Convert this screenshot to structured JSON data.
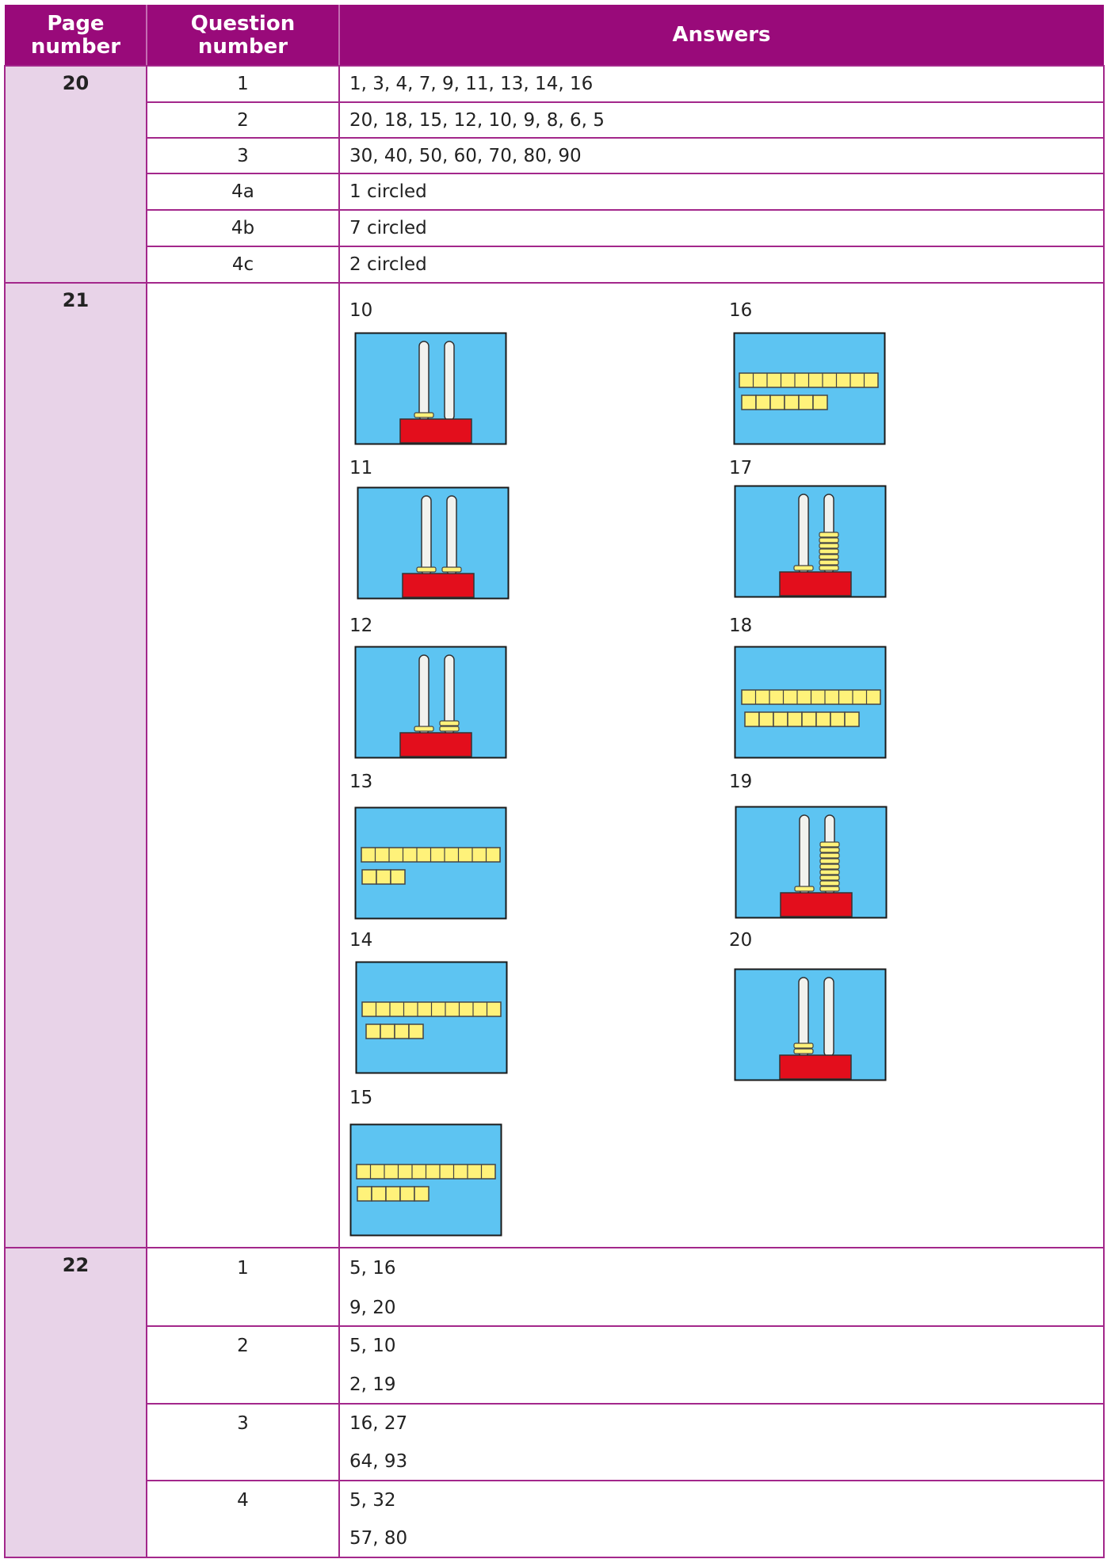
{
  "table": {
    "header": [
      "Page number",
      "Question number",
      "Answers"
    ],
    "sections": [
      {
        "page": "20",
        "rows": [
          {
            "question": "1",
            "answers": [
              "1, 3, 4, 7, 9, 11, 13, 14, 16"
            ]
          },
          {
            "question": "2",
            "answers": [
              "20, 18, 15, 12, 10, 9, 8, 6, 5"
            ]
          },
          {
            "question": "3",
            "answers": [
              "30, 40, 50, 60, 70, 80, 90"
            ]
          },
          {
            "question": "4a",
            "answers": [
              "1 circled"
            ]
          },
          {
            "question": "4b",
            "answers": [
              "7 circled"
            ]
          },
          {
            "question": "4c",
            "answers": [
              "2 circled"
            ]
          }
        ]
      },
      {
        "page": "21",
        "figures": [
          "10",
          "11",
          "12",
          "13",
          "14",
          "15",
          "16",
          "17",
          "18",
          "19",
          "20"
        ]
      },
      {
        "page": "22",
        "rows": [
          {
            "question": "1",
            "answers": [
              "5, 16",
              "9, 20"
            ]
          },
          {
            "question": "2",
            "answers": [
              "5, 10",
              "2, 19"
            ]
          },
          {
            "question": "3",
            "answers": [
              "16, 27",
              "64, 93"
            ]
          },
          {
            "question": "4",
            "answers": [
              "5, 32",
              "57, 80"
            ]
          }
        ]
      }
    ]
  }
}
